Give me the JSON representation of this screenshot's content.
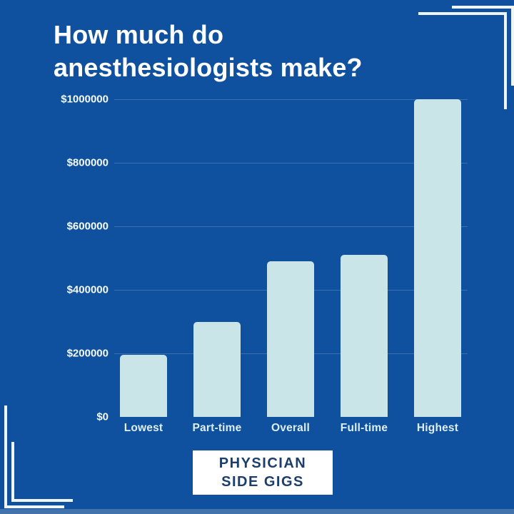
{
  "header": {
    "title_line1": "How much do",
    "title_line2": "anesthesiologists make?"
  },
  "chart_data": {
    "type": "bar",
    "title": "How much do anesthesiologists make?",
    "categories": [
      "Lowest",
      "Part-time",
      "Overall",
      "Full-time",
      "Highest"
    ],
    "values": [
      195000,
      300000,
      490000,
      510000,
      1000000
    ],
    "xlabel": "",
    "ylabel": "",
    "ylim": [
      0,
      1000000
    ],
    "yticks": [
      {
        "label": "$1000000",
        "value": 1000000
      },
      {
        "label": "$800000",
        "value": 800000
      },
      {
        "label": "$600000",
        "value": 600000
      },
      {
        "label": "$400000",
        "value": 400000
      },
      {
        "label": "$200000",
        "value": 200000
      },
      {
        "label": "$0",
        "value": 0
      }
    ],
    "grid": "horizontal gridlines at each y tick, none at zero baseline",
    "legend": "none",
    "bar_color": "#c9e5e7",
    "background_color": "#0f519e",
    "tick_label_color": "#ffffff"
  },
  "footer": {
    "logo_line1": "PHYSICIAN",
    "logo_line2": "SIDE GIGS"
  },
  "palette": {
    "background": "#0f519e",
    "bar_fill": "#c9e5e7",
    "title_text": "#ffffff",
    "axis_text": "#ddeef1",
    "logo_background": "#ffffff",
    "logo_text": "#1d3e6b",
    "corner_bracket": "#edf5f9",
    "bottom_strip": "#4273ac"
  }
}
